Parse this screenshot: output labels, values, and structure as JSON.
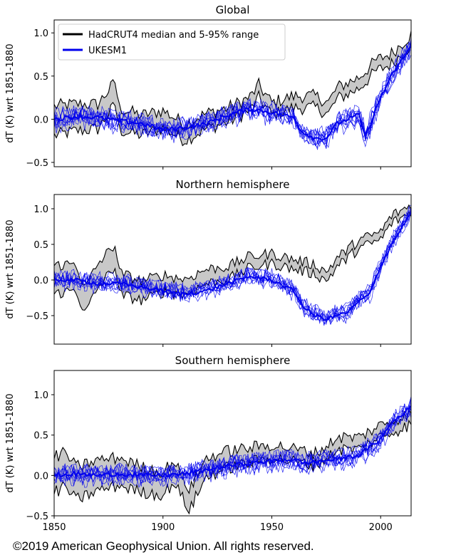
{
  "figure": {
    "copyright": "©2019 American Geophysical Union. All rights reserved.",
    "legend": {
      "observed_label": "HadCRUT4 median and 5-95% range",
      "model_label": "UKESM1"
    },
    "colors": {
      "observed": "#000000",
      "observed_band": "#c8c8c8",
      "model": "#0000ee"
    }
  },
  "chart_data": [
    {
      "type": "line",
      "title": "Global",
      "xlabel": "",
      "ylabel": "dT (K) wrt 1851-1880",
      "xlim": [
        1850,
        2014
      ],
      "ylim": [
        -0.55,
        1.15
      ],
      "yticks": [
        -0.5,
        0.0,
        0.5,
        1.0
      ],
      "ytick_labels": [
        "−0.5",
        "0.0",
        "0.5",
        "1.0"
      ],
      "xticks": [
        1900,
        1950,
        2000
      ],
      "xtick_labels": [],
      "legend": "top-left",
      "series": [
        {
          "name": "HadCRUT4 median and 5-95% range",
          "kind": "observed-band",
          "band_halfwidth": [
            0.17,
            0.1,
            0.07,
            0.06
          ],
          "x": [
            1850,
            1860,
            1870,
            1878,
            1880,
            1890,
            1900,
            1910,
            1920,
            1930,
            1940,
            1944,
            1950,
            1960,
            1970,
            1976,
            1980,
            1990,
            1998,
            2005,
            2014
          ],
          "y": [
            -0.02,
            0.02,
            0.03,
            0.3,
            0.0,
            -0.07,
            0.0,
            -0.15,
            -0.02,
            0.05,
            0.18,
            0.32,
            0.12,
            0.2,
            0.2,
            0.13,
            0.3,
            0.42,
            0.62,
            0.7,
            0.92
          ]
        },
        {
          "name": "UKESM1",
          "kind": "ensemble-mean",
          "x": [
            1850,
            1860,
            1870,
            1880,
            1890,
            1900,
            1910,
            1920,
            1930,
            1940,
            1950,
            1960,
            1964,
            1970,
            1975,
            1980,
            1990,
            1993,
            2000,
            2005,
            2014
          ],
          "y": [
            0.0,
            0.03,
            0.02,
            -0.02,
            -0.05,
            -0.12,
            -0.1,
            -0.05,
            0.05,
            0.12,
            0.08,
            0.02,
            -0.15,
            -0.22,
            -0.22,
            -0.05,
            0.05,
            -0.2,
            0.25,
            0.5,
            0.85
          ]
        }
      ]
    },
    {
      "type": "line",
      "title": "Northern hemisphere",
      "xlabel": "",
      "ylabel": "dT (K) wrt 1851-1880",
      "xlim": [
        1850,
        2014
      ],
      "ylim": [
        -0.9,
        1.2
      ],
      "yticks": [
        -0.5,
        0.0,
        0.5,
        1.0
      ],
      "ytick_labels": [
        "−0.5",
        "0.0",
        "0.5",
        "1.0"
      ],
      "xticks": [
        1900,
        1950,
        2000
      ],
      "xtick_labels": [],
      "series": [
        {
          "name": "HadCRUT4 median and 5-95% range",
          "kind": "observed-band",
          "band_halfwidth": [
            0.2,
            0.12,
            0.07,
            0.05
          ],
          "x": [
            1850,
            1860,
            1864,
            1870,
            1878,
            1880,
            1890,
            1900,
            1910,
            1920,
            1930,
            1940,
            1950,
            1960,
            1970,
            1975,
            1980,
            1990,
            2000,
            2005,
            2014
          ],
          "y": [
            0.0,
            0.05,
            -0.3,
            0.05,
            0.35,
            -0.05,
            -0.15,
            -0.05,
            -0.1,
            0.05,
            0.1,
            0.25,
            0.3,
            0.22,
            0.15,
            0.05,
            0.25,
            0.5,
            0.62,
            0.85,
            1.0
          ]
        },
        {
          "name": "UKESM1",
          "kind": "ensemble-mean",
          "x": [
            1850,
            1860,
            1870,
            1880,
            1890,
            1900,
            1910,
            1920,
            1930,
            1940,
            1950,
            1960,
            1965,
            1970,
            1975,
            1980,
            1985,
            1990,
            1995,
            2000,
            2005,
            2014
          ],
          "y": [
            0.0,
            0.0,
            -0.05,
            -0.05,
            -0.1,
            -0.15,
            -0.2,
            -0.15,
            -0.05,
            0.05,
            0.0,
            -0.15,
            -0.4,
            -0.5,
            -0.55,
            -0.5,
            -0.45,
            -0.3,
            -0.2,
            0.2,
            0.5,
            0.95
          ]
        }
      ]
    },
    {
      "type": "line",
      "title": "Southern hemisphere",
      "xlabel": "",
      "ylabel": "dT (K) wrt 1851-1880",
      "xlim": [
        1850,
        2014
      ],
      "ylim": [
        -0.5,
        1.3
      ],
      "yticks": [
        -0.5,
        0.0,
        0.5,
        1.0
      ],
      "ytick_labels": [
        "−0.5",
        "0.0",
        "0.5",
        "1.0"
      ],
      "xticks": [
        1850,
        1900,
        1950,
        2000
      ],
      "xtick_labels": [
        "1850",
        "1900",
        "1950",
        "2000"
      ],
      "series": [
        {
          "name": "HadCRUT4 median and 5-95% range",
          "kind": "observed-band",
          "band_halfwidth": [
            0.22,
            0.14,
            0.08,
            0.07
          ],
          "x": [
            1850,
            1855,
            1860,
            1870,
            1880,
            1890,
            1900,
            1905,
            1912,
            1920,
            1930,
            1940,
            1950,
            1960,
            1970,
            1976,
            1980,
            1990,
            2000,
            2014
          ],
          "y": [
            0.0,
            0.08,
            -0.1,
            0.0,
            0.05,
            -0.05,
            -0.1,
            0.05,
            -0.3,
            0.1,
            0.2,
            0.25,
            0.3,
            0.25,
            0.2,
            0.3,
            0.4,
            0.4,
            0.55,
            0.7
          ]
        },
        {
          "name": "UKESM1",
          "kind": "ensemble-mean",
          "x": [
            1850,
            1860,
            1870,
            1880,
            1890,
            1900,
            1910,
            1920,
            1930,
            1940,
            1950,
            1960,
            1965,
            1970,
            1980,
            1990,
            2000,
            2005,
            2014
          ],
          "y": [
            0.0,
            0.02,
            0.0,
            0.02,
            0.0,
            0.0,
            0.02,
            0.07,
            0.12,
            0.15,
            0.18,
            0.2,
            0.15,
            0.17,
            0.2,
            0.25,
            0.45,
            0.65,
            0.85
          ]
        }
      ]
    }
  ]
}
